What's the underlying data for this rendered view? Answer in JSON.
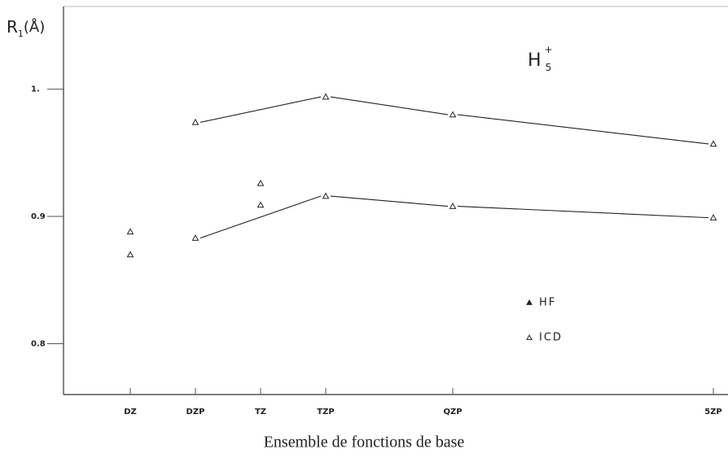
{
  "chart_data": {
    "type": "line",
    "annotation": {
      "text": "H",
      "sub": "5",
      "sup": "+"
    },
    "y_label": {
      "text": "R",
      "sub": "1",
      "unit": "(Å)"
    },
    "x_label": "Ensemble de fonctions de base",
    "categories": [
      "DZ",
      "DZP",
      "TZ",
      "TZP",
      "QZP",
      "5ZP"
    ],
    "series": [
      {
        "name": "HF",
        "color": "#222222",
        "marker": "filled-triangle",
        "values": [
          0.87,
          0.883,
          0.909,
          0.916,
          0.908,
          0.899
        ],
        "connected": [
          false,
          true,
          false,
          true,
          true,
          true
        ]
      },
      {
        "name": "ICD",
        "color": "#222222",
        "marker": "open-triangle",
        "values": [
          0.888,
          0.974,
          0.926,
          0.994,
          0.98,
          0.957
        ],
        "connected": [
          false,
          true,
          false,
          true,
          true,
          true
        ]
      }
    ],
    "ylim": [
      0.76,
      1.065
    ],
    "yticks": [
      0.8,
      0.9,
      {
        "value": 1,
        "label": "1."
      }
    ],
    "legend": "lower-right"
  }
}
